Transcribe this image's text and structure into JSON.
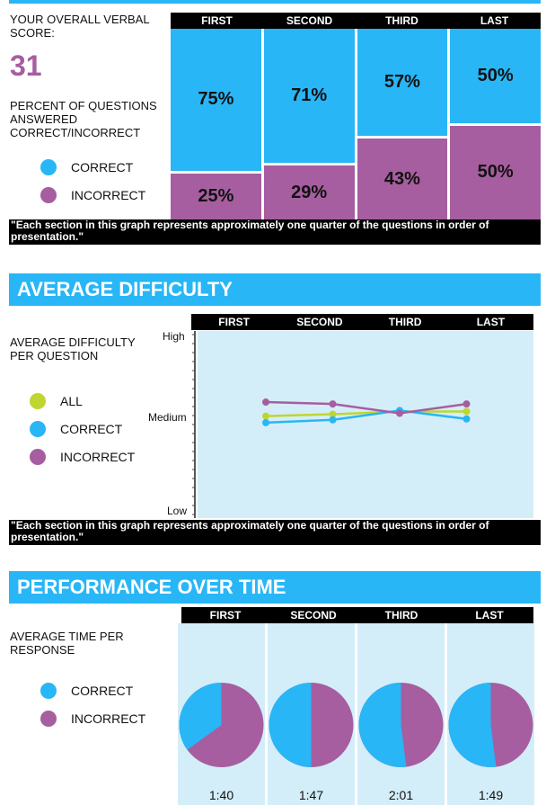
{
  "sections": [
    "FIRST",
    "SECOND",
    "THIRD",
    "LAST"
  ],
  "colors": {
    "correct": "#29b6f6",
    "incorrect": "#a65ea0",
    "all": "#c0d630",
    "banner": "#29b6f6",
    "panel": "#d4eef9"
  },
  "score": {
    "label": "YOUR OVERALL VERBAL SCORE:",
    "value": "31",
    "pct_label": "PERCENT OF QUESTIONS ANSWERED CORRECT/INCORRECT"
  },
  "legend": {
    "all": "ALL",
    "correct": "CORRECT",
    "incorrect": "INCORRECT"
  },
  "note": "\"Each section in this graph represents approximately one quarter of the questions in order of presentation.\"",
  "difficulty": {
    "title": "AVERAGE DIFFICULTY",
    "label": "AVERAGE DIFFICULTY PER QUESTION",
    "y_high": "High",
    "y_medium": "Medium",
    "y_low": "Low"
  },
  "performance": {
    "title": "PERFORMANCE OVER TIME",
    "label": "AVERAGE TIME PER RESPONSE"
  },
  "chart_data": [
    {
      "type": "bar",
      "categories": [
        "FIRST",
        "SECOND",
        "THIRD",
        "LAST"
      ],
      "series": [
        {
          "name": "CORRECT",
          "values": [
            75,
            71,
            57,
            50
          ]
        },
        {
          "name": "INCORRECT",
          "values": [
            25,
            29,
            43,
            50
          ]
        }
      ],
      "data_labels": {
        "correct": [
          "75%",
          "71%",
          "57%",
          "50%"
        ],
        "incorrect": [
          "25%",
          "29%",
          "43%",
          "50%"
        ]
      },
      "ylim": [
        0,
        100
      ],
      "stacked": true
    },
    {
      "type": "line",
      "categories": [
        "FIRST",
        "SECOND",
        "THIRD",
        "LAST"
      ],
      "y_ticks": [
        "Low",
        "Medium",
        "High"
      ],
      "ylim": [
        0,
        100
      ],
      "series": [
        {
          "name": "ALL",
          "values": [
            54.5,
            55.5,
            57,
            57
          ]
        },
        {
          "name": "CORRECT",
          "values": [
            51,
            52.5,
            57.5,
            53
          ]
        },
        {
          "name": "INCORRECT",
          "values": [
            62,
            61,
            56,
            61
          ]
        }
      ]
    },
    {
      "type": "pie",
      "categories": [
        "FIRST",
        "SECOND",
        "THIRD",
        "LAST"
      ],
      "pies": [
        {
          "label": "1:40",
          "correct": 35,
          "incorrect": 65
        },
        {
          "label": "1:47",
          "correct": 50,
          "incorrect": 50
        },
        {
          "label": "2:01",
          "correct": 52,
          "incorrect": 48
        },
        {
          "label": "1:49",
          "correct": 52,
          "incorrect": 48
        }
      ]
    }
  ]
}
